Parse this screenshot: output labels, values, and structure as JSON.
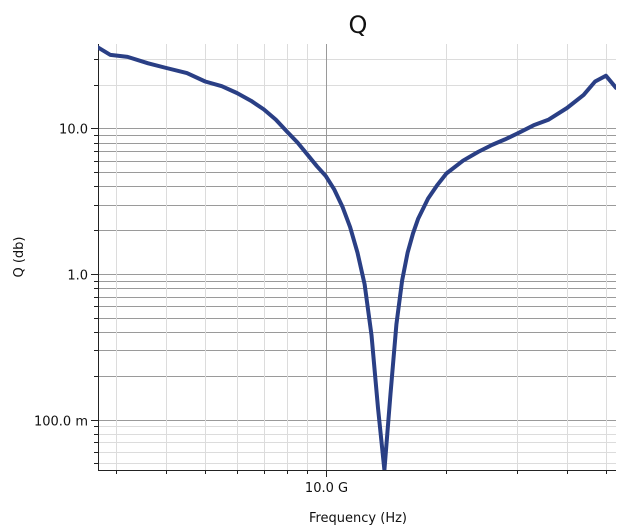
{
  "chart_data": {
    "type": "line",
    "title": "Q",
    "xlabel": "Frequency (Hz)",
    "ylabel": "Q (db)",
    "x_scale": "log",
    "y_scale": "log",
    "xlim": [
      2700000000.0,
      53000000000.0
    ],
    "ylim": [
      0.045,
      38
    ],
    "x_ticks": [
      {
        "value": 10000000000.0,
        "label": "10.0 G"
      }
    ],
    "y_ticks": [
      {
        "value": 0.1,
        "label": "100.0 m"
      },
      {
        "value": 1,
        "label": "1.0"
      },
      {
        "value": 10,
        "label": "10.0"
      }
    ],
    "grid": true,
    "line_color": "#2a3f85",
    "series": [
      {
        "x": [
          2700000000.0,
          2900000000.0,
          3200000000.0,
          3600000000.0,
          4000000000.0,
          4500000000.0,
          5000000000.0,
          5500000000.0,
          6000000000.0,
          6500000000.0,
          7000000000.0,
          7500000000.0,
          8000000000.0,
          8500000000.0,
          9000000000.0,
          9500000000.0,
          10000000000.0,
          10500000000.0,
          11000000000.0,
          11500000000.0,
          12000000000.0,
          12500000000.0,
          13000000000.0,
          13500000000.0,
          14000000000.0,
          14500000000.0,
          15000000000.0,
          15500000000.0,
          16000000000.0,
          16500000000.0,
          17000000000.0,
          18000000000.0,
          19000000000.0,
          20000000000.0,
          22000000000.0,
          24000000000.0,
          26000000000.0,
          28000000000.0,
          30000000000.0,
          33000000000.0,
          36000000000.0,
          40000000000.0,
          44000000000.0,
          47000000000.0,
          50000000000.0,
          53000000000.0
        ],
        "y": [
          36,
          32,
          31,
          28,
          26,
          24,
          21,
          19.5,
          17.5,
          15.5,
          13.5,
          11.5,
          9.5,
          8.0,
          6.6,
          5.5,
          4.7,
          3.8,
          2.9,
          2.1,
          1.4,
          0.85,
          0.38,
          0.12,
          0.045,
          0.15,
          0.45,
          0.9,
          1.4,
          1.9,
          2.4,
          3.3,
          4.1,
          4.9,
          6.0,
          6.9,
          7.7,
          8.4,
          9.2,
          10.5,
          11.5,
          13.8,
          17.0,
          21.0,
          23.0,
          19.0
        ]
      }
    ]
  }
}
